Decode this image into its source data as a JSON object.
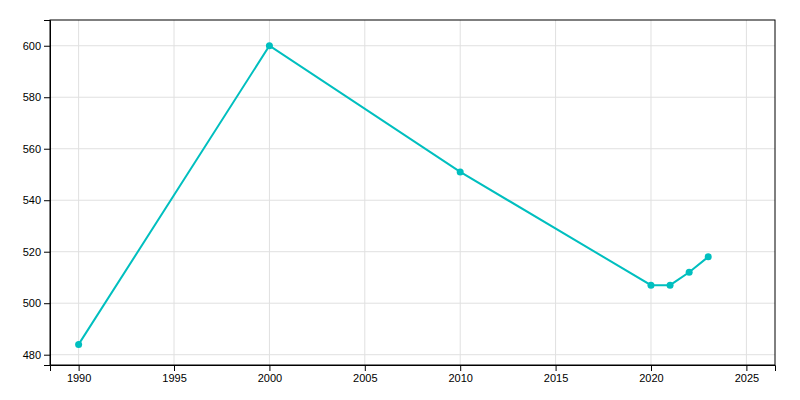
{
  "chart_data": {
    "type": "line",
    "x": [
      1990,
      2000,
      2010,
      2020,
      2021,
      2022,
      2023
    ],
    "values": [
      484,
      600,
      551,
      507,
      507,
      512,
      518
    ],
    "color": "#00BFBF",
    "marker": "circle",
    "xlim": [
      1988.5,
      2026.5
    ],
    "ylim": [
      476,
      610
    ],
    "xticks": [
      1990,
      1995,
      2000,
      2005,
      2010,
      2015,
      2020,
      2025
    ],
    "yticks": [
      480,
      500,
      520,
      540,
      560,
      580,
      600
    ],
    "grid": true
  }
}
